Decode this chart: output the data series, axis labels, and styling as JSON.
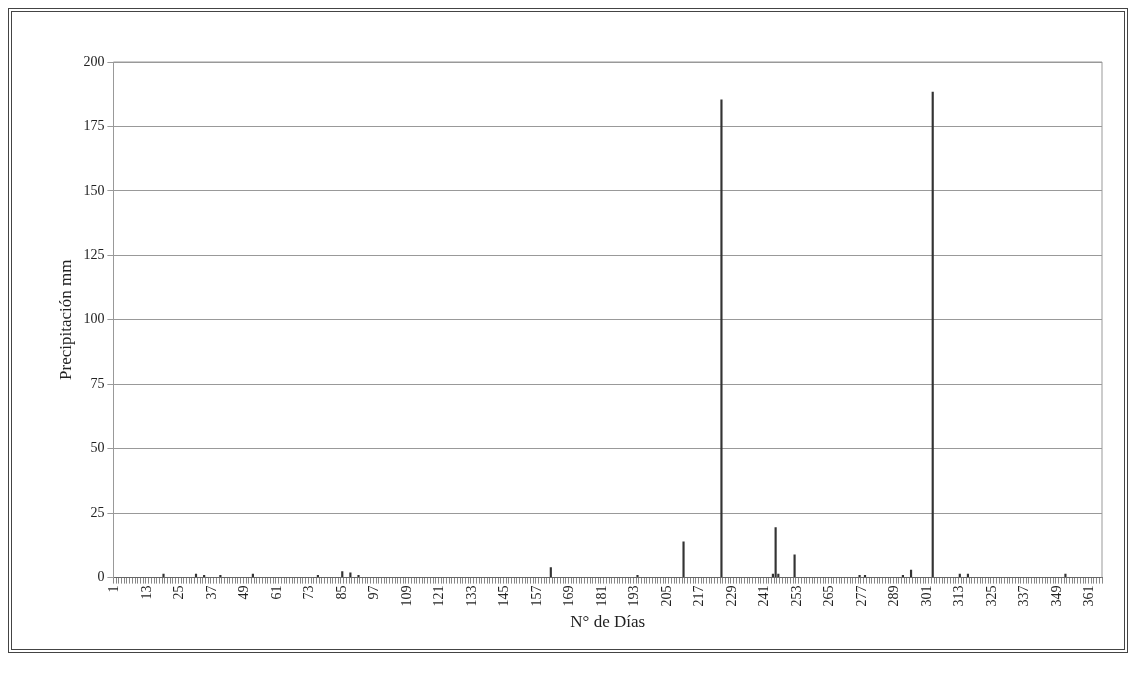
{
  "chart_data": {
    "type": "bar",
    "xlabel": "N° de Días",
    "ylabel": "Precipitación mm",
    "categories": [
      "1",
      null,
      null,
      null,
      null,
      null,
      null,
      null,
      null,
      null,
      null,
      null,
      "13",
      null,
      null,
      null,
      null,
      null,
      null,
      null,
      null,
      null,
      null,
      null,
      "25",
      null,
      null,
      null,
      null,
      null,
      null,
      null,
      null,
      null,
      null,
      null,
      "37",
      null,
      null,
      null,
      null,
      null,
      null,
      null,
      null,
      null,
      null,
      null,
      "49",
      null,
      null,
      null,
      null,
      null,
      null,
      null,
      null,
      null,
      null,
      null,
      "61",
      null,
      null,
      null,
      null,
      null,
      null,
      null,
      null,
      null,
      null,
      null,
      "73",
      null,
      null,
      null,
      null,
      null,
      null,
      null,
      null,
      null,
      null,
      null,
      "85",
      null,
      null,
      null,
      null,
      null,
      null,
      null,
      null,
      null,
      null,
      null,
      "97",
      null,
      null,
      null,
      null,
      null,
      null,
      null,
      null,
      null,
      null,
      null,
      "109",
      null,
      null,
      null,
      null,
      null,
      null,
      null,
      null,
      null,
      null,
      null,
      "121",
      null,
      null,
      null,
      null,
      null,
      null,
      null,
      null,
      null,
      null,
      null,
      "133",
      null,
      null,
      null,
      null,
      null,
      null,
      null,
      null,
      null,
      null,
      null,
      "145",
      null,
      null,
      null,
      null,
      null,
      null,
      null,
      null,
      null,
      null,
      null,
      "157",
      null,
      null,
      null,
      null,
      null,
      null,
      null,
      null,
      null,
      null,
      null,
      "169",
      null,
      null,
      null,
      null,
      null,
      null,
      null,
      null,
      null,
      null,
      null,
      "181",
      null,
      null,
      null,
      null,
      null,
      null,
      null,
      null,
      null,
      null,
      null,
      "193",
      null,
      null,
      null,
      null,
      null,
      null,
      null,
      null,
      null,
      null,
      null,
      "205",
      null,
      null,
      null,
      null,
      null,
      null,
      null,
      null,
      null,
      null,
      null,
      "217",
      null,
      null,
      null,
      null,
      null,
      null,
      null,
      null,
      null,
      null,
      null,
      "229",
      null,
      null,
      null,
      null,
      null,
      null,
      null,
      null,
      null,
      null,
      null,
      "241",
      null,
      null,
      null,
      null,
      null,
      null,
      null,
      null,
      null,
      null,
      null,
      "253",
      null,
      null,
      null,
      null,
      null,
      null,
      null,
      null,
      null,
      null,
      null,
      "265",
      null,
      null,
      null,
      null,
      null,
      null,
      null,
      null,
      null,
      null,
      null,
      "277",
      null,
      null,
      null,
      null,
      null,
      null,
      null,
      null,
      null,
      null,
      null,
      "289",
      null,
      null,
      null,
      null,
      null,
      null,
      null,
      null,
      null,
      null,
      null,
      "301",
      null,
      null,
      null,
      null,
      null,
      null,
      null,
      null,
      null,
      null,
      null,
      "313",
      null,
      null,
      null,
      null,
      null,
      null,
      null,
      null,
      null,
      null,
      null,
      "325",
      null,
      null,
      null,
      null,
      null,
      null,
      null,
      null,
      null,
      null,
      null,
      "337",
      null,
      null,
      null,
      null,
      null,
      null,
      null,
      null,
      null,
      null,
      null,
      "349",
      null,
      null,
      null,
      null,
      null,
      null,
      null,
      null,
      null,
      null,
      null,
      "361",
      null,
      null,
      null,
      null
    ],
    "values": [
      0,
      0,
      0,
      0,
      0,
      0,
      0,
      0,
      0,
      0,
      0,
      0,
      0,
      0,
      0,
      0,
      0,
      0,
      1.5,
      0,
      0,
      0,
      0,
      0,
      0,
      0,
      0,
      0,
      0,
      0,
      1.5,
      0,
      0,
      1,
      0,
      0,
      0,
      0,
      0,
      1,
      0,
      0,
      0,
      0,
      0,
      0,
      0,
      0,
      0,
      0,
      0,
      1.5,
      0,
      0,
      0,
      0,
      0,
      0,
      0,
      0,
      0,
      0,
      0,
      0,
      0,
      0,
      0,
      0,
      0,
      0,
      0,
      0,
      0,
      0,
      0,
      1,
      0,
      0,
      0,
      0,
      0,
      0,
      0,
      0,
      2.5,
      0,
      0,
      2,
      0,
      0,
      1,
      0,
      0,
      0,
      0,
      0,
      0,
      0,
      0,
      0,
      0,
      0,
      0,
      0,
      0,
      0,
      0,
      0,
      0,
      0,
      0,
      0,
      0,
      0,
      0,
      0,
      0,
      0,
      0,
      0,
      0,
      0,
      0,
      0,
      0,
      0,
      0,
      0,
      0,
      0,
      0,
      0,
      0,
      0,
      0,
      0,
      0,
      0,
      0,
      0,
      0,
      0,
      0,
      0,
      0,
      0,
      0,
      0,
      0,
      0,
      0,
      0,
      0,
      0,
      0,
      0,
      0,
      0,
      0,
      0,
      0,
      4,
      0,
      0,
      0,
      0,
      0,
      0,
      0,
      0,
      0,
      0,
      0,
      0,
      0,
      0,
      0,
      0,
      0,
      0,
      0,
      0,
      0,
      0,
      0,
      0,
      0,
      0,
      0,
      0,
      0,
      0,
      0,
      1,
      0,
      0,
      0,
      0,
      0,
      0,
      0,
      0,
      0,
      0,
      0,
      0,
      0,
      0,
      0,
      0,
      14,
      0,
      0,
      0,
      0,
      0,
      0,
      0,
      0,
      0,
      0,
      0,
      0,
      0,
      185.5,
      0,
      0,
      0,
      0,
      0,
      0,
      0,
      0,
      0,
      0,
      0,
      0,
      0,
      0,
      0,
      0,
      0,
      0,
      1.5,
      19.5,
      1.5,
      0,
      0,
      0,
      0,
      0,
      9,
      0,
      0,
      0,
      0,
      0,
      0,
      0,
      0,
      0,
      0,
      0,
      0,
      0,
      0,
      0,
      0,
      0,
      0,
      0,
      0,
      0,
      0,
      0,
      1,
      0,
      1,
      0,
      0,
      0,
      0,
      0,
      0,
      0,
      0,
      0,
      0,
      0,
      0,
      0,
      1,
      0,
      0,
      3,
      0,
      0,
      0,
      0,
      0,
      0,
      0,
      188.5,
      0,
      0,
      0,
      0,
      0,
      0,
      0,
      0,
      0,
      1.5,
      0,
      0,
      1.5,
      0,
      0,
      0,
      0,
      0,
      0,
      0,
      0,
      0,
      0,
      0,
      0,
      0,
      0,
      0,
      0,
      0,
      0,
      0,
      0,
      0,
      0,
      0,
      0,
      0,
      0,
      0,
      0,
      0,
      0,
      0,
      0,
      0,
      0,
      0,
      1.5,
      0,
      0,
      0,
      0,
      0,
      0,
      0,
      0,
      0,
      0,
      0,
      0,
      0
    ],
    "color": "#333333",
    "ylim": [
      0,
      200
    ],
    "yticks": [
      0,
      25,
      50,
      75,
      100,
      125,
      150,
      175,
      200
    ],
    "grid": "y",
    "legend": false
  }
}
